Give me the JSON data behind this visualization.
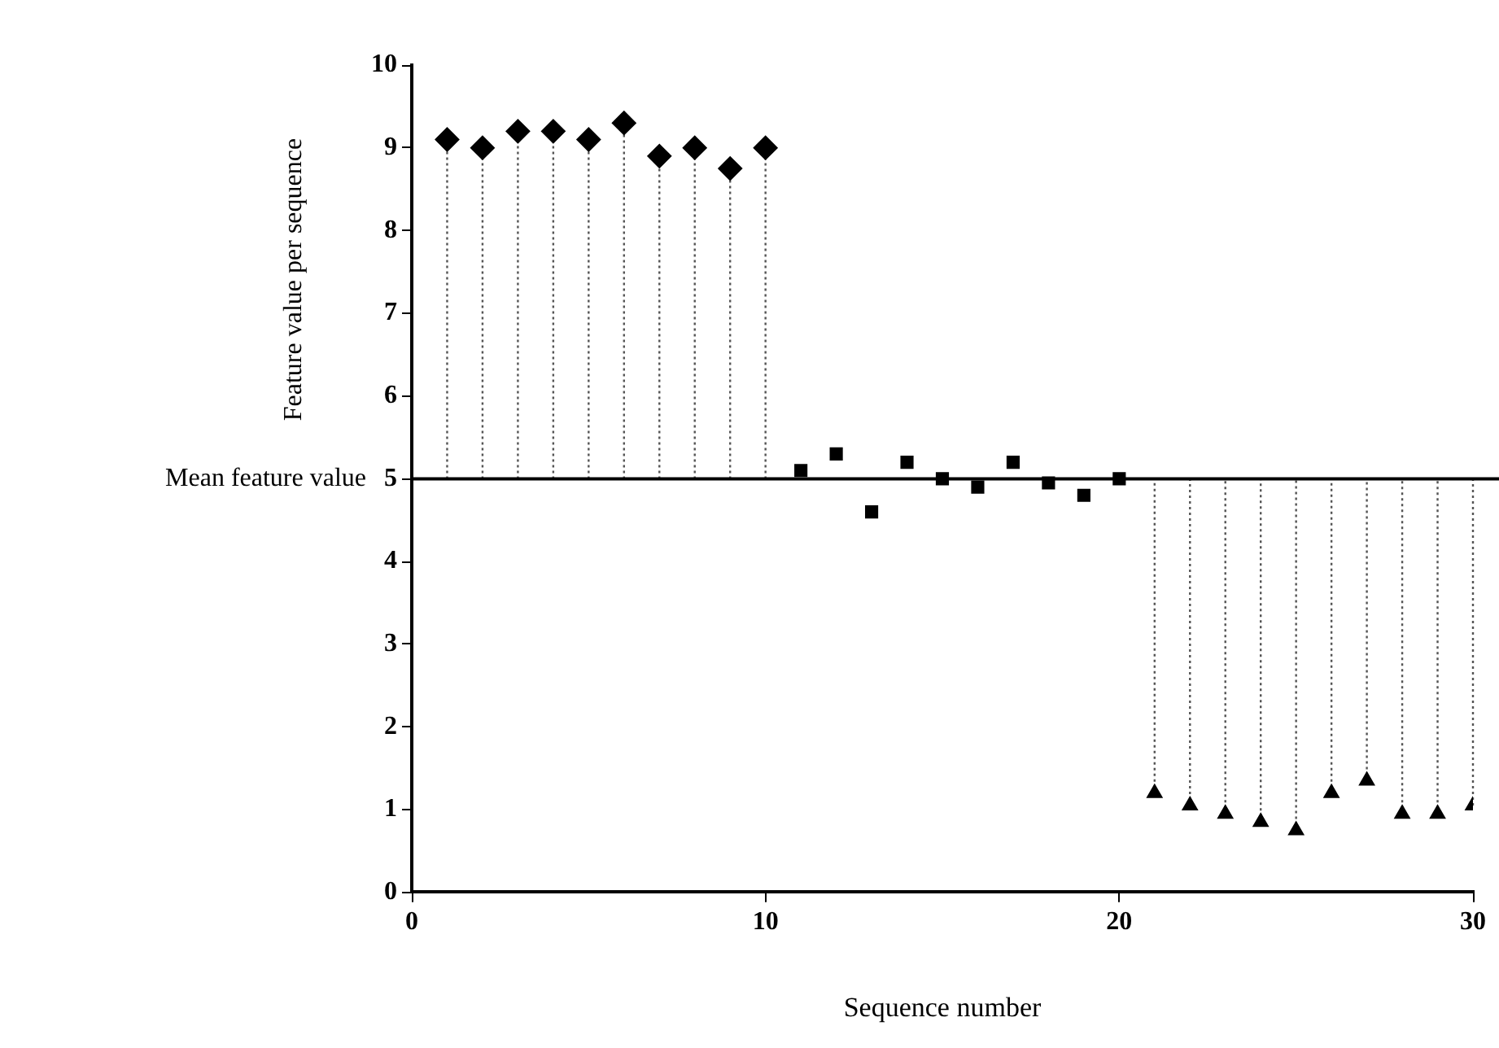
{
  "chart_data": {
    "type": "scatter",
    "xlabel": "Sequence number",
    "ylabel": "Feature value per sequence",
    "xlim": [
      0,
      30
    ],
    "xticks": [
      0,
      10,
      20,
      30
    ],
    "ylim": [
      0,
      10
    ],
    "yticks": [
      0,
      1,
      2,
      3,
      4,
      5,
      6,
      7,
      8,
      9,
      10
    ],
    "grid": false,
    "legend": false,
    "ref_lines": [
      {
        "axis": "y",
        "value": 5,
        "label": "Mean feature value",
        "color": "#000000"
      }
    ],
    "series": [
      {
        "marker": "diamond",
        "color": "#000000",
        "x": [
          1,
          2,
          3,
          4,
          5,
          6,
          7,
          8,
          9,
          10
        ],
        "values": [
          9.1,
          9.0,
          9.2,
          9.2,
          9.1,
          9.3,
          8.9,
          9.0,
          8.75,
          9.0
        ],
        "errors": [
          [
            5,
            9.1
          ],
          [
            5,
            9.0
          ],
          [
            5,
            9.2
          ],
          [
            5,
            9.2
          ],
          [
            5,
            9.1
          ],
          [
            5,
            9.3
          ],
          [
            5,
            8.9
          ],
          [
            5,
            9.0
          ],
          [
            5,
            8.75
          ],
          [
            5,
            9.0
          ]
        ]
      },
      {
        "marker": "square",
        "color": "#000000",
        "x": [
          11,
          12,
          13,
          14,
          15,
          16,
          17,
          18,
          19,
          20
        ],
        "values": [
          5.1,
          5.3,
          4.6,
          5.2,
          5.0,
          4.9,
          5.2,
          4.95,
          4.8,
          5.0
        ]
      },
      {
        "marker": "triangle",
        "color": "#000000",
        "x": [
          21,
          22,
          23,
          24,
          25,
          26,
          27,
          28,
          29,
          30
        ],
        "values": [
          1.2,
          1.05,
          0.95,
          0.85,
          0.75,
          1.2,
          1.35,
          0.95,
          0.95,
          1.05
        ],
        "errors": [
          [
            1.2,
            5
          ],
          [
            1.05,
            5
          ],
          [
            0.95,
            5
          ],
          [
            0.85,
            5
          ],
          [
            0.75,
            5
          ],
          [
            1.2,
            5
          ],
          [
            1.35,
            5
          ],
          [
            0.95,
            5
          ],
          [
            0.95,
            5
          ],
          [
            1.05,
            5
          ]
        ]
      }
    ]
  }
}
